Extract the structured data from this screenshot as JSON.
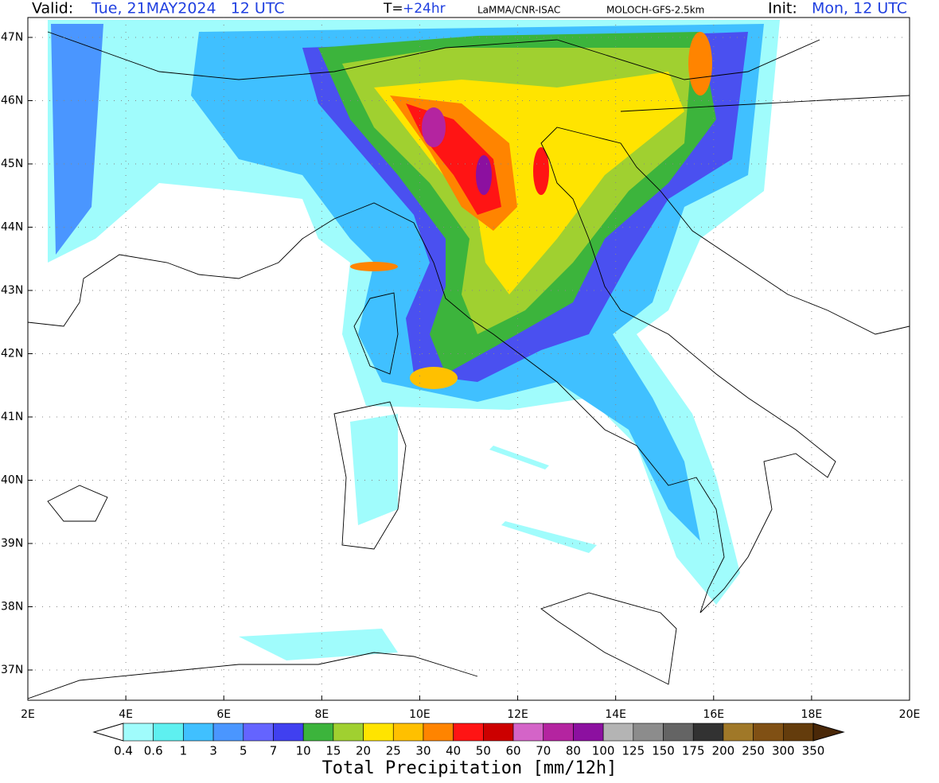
{
  "header": {
    "valid_label": "Valid:",
    "valid_value": "Tue, 21MAY2024   12 UTC",
    "t_label": "T=",
    "t_value": "+24hr",
    "source": "LaMMA/CNR-ISAC",
    "model": "MOLOCH-GFS-2.5km",
    "init_label": "Init:",
    "init_value": "Mon, 12 UTC"
  },
  "map": {
    "lat_labels": [
      "47N",
      "46N",
      "45N",
      "44N",
      "43N",
      "42N",
      "41N",
      "40N",
      "39N",
      "38N",
      "37N"
    ],
    "lon_labels": [
      "2E",
      "4E",
      "6E",
      "8E",
      "10E",
      "12E",
      "14E",
      "16E",
      "18E",
      "20E"
    ],
    "grid": true
  },
  "colorbar": {
    "labels": [
      "0.4",
      "0.6",
      "1",
      "3",
      "5",
      "7",
      "10",
      "15",
      "20",
      "25",
      "30",
      "40",
      "50",
      "60",
      "70",
      "80",
      "100",
      "125",
      "150",
      "175",
      "200",
      "250",
      "300",
      "350"
    ],
    "colors": [
      "#a0fcfc",
      "#5ef0f0",
      "#40c0ff",
      "#4a96ff",
      "#6464ff",
      "#4040f0",
      "#3cb43c",
      "#a0d030",
      "#ffe400",
      "#ffc000",
      "#ff8400",
      "#ff1414",
      "#cc0000",
      "#d464c8",
      "#b424a0",
      "#8c10a0",
      "#b4b4b4",
      "#8c8c8c",
      "#646464",
      "#323232",
      "#a07828",
      "#805014",
      "#643c0c",
      "#4a2808"
    ],
    "title": "Total Precipitation [mm/12h]"
  }
}
